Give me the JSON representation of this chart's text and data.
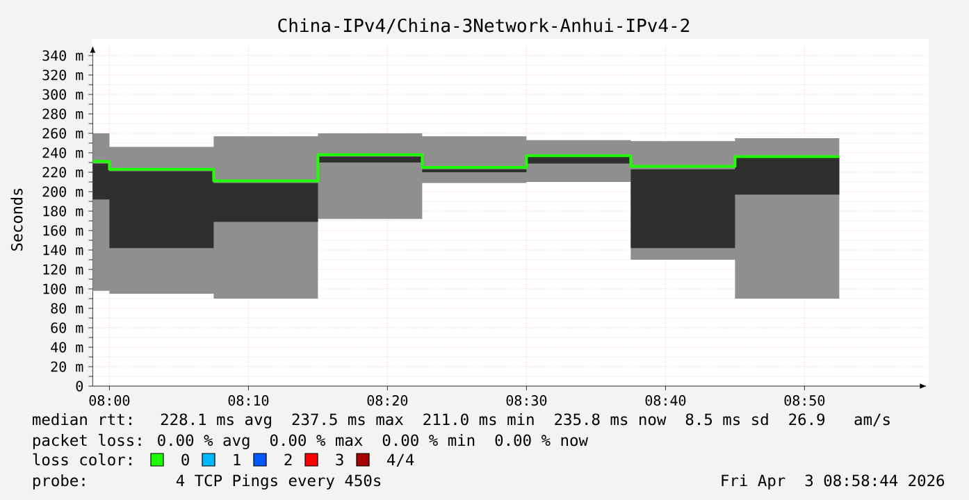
{
  "chart_data": {
    "type": "step",
    "title": "China-IPv4/China-3Network-Anhui-IPv4-2",
    "ylabel": "Seconds",
    "x": [
      7.98,
      8.0,
      8.125,
      8.25,
      8.375,
      8.5,
      8.625,
      8.75,
      8.875
    ],
    "series": [
      {
        "color": "#8f8f8f",
        "values": [
          null,
          null,
          null,
          null,
          null,
          null,
          null,
          null,
          null
        ],
        "lower": [
          98,
          95,
          90,
          172,
          209,
          210,
          130,
          90,
          90
        ],
        "upper": [
          260,
          246,
          257,
          260,
          257,
          253,
          252,
          255,
          255
        ]
      },
      {
        "color": "#2f2f2f",
        "values": [
          null,
          null,
          null,
          null,
          null,
          null,
          null,
          null,
          null
        ],
        "lower": [
          192,
          142,
          169,
          230,
          220,
          229,
          142,
          197,
          197
        ],
        "upper": [
          229,
          221,
          209,
          236,
          223,
          236,
          223,
          235,
          235
        ]
      },
      {
        "color": "#20ff00",
        "values": [
          231,
          223,
          211,
          238,
          225,
          237,
          226,
          236,
          236
        ]
      }
    ],
    "xlim": [
      7.98,
      8.98
    ],
    "xticks": [
      {
        "value": 8.0,
        "label": "08:00"
      },
      {
        "value": 8.1667,
        "label": "08:10"
      },
      {
        "value": 8.3333,
        "label": "08:20"
      },
      {
        "value": 8.5,
        "label": "08:30"
      },
      {
        "value": 8.6667,
        "label": "08:40"
      },
      {
        "value": 8.8333,
        "label": "08:50"
      }
    ],
    "ylim": [
      0,
      350
    ],
    "yticks": [
      0,
      {
        "value": 20,
        "label": "20 m"
      },
      {
        "value": 40,
        "label": "40 m"
      },
      {
        "value": 60,
        "label": "60 m"
      },
      {
        "value": 80,
        "label": "80 m"
      },
      {
        "value": 100,
        "label": "100 m"
      },
      {
        "value": 120,
        "label": "120 m"
      },
      {
        "value": 140,
        "label": "140 m"
      },
      {
        "value": 160,
        "label": "160 m"
      },
      {
        "value": 180,
        "label": "180 m"
      },
      {
        "value": 200,
        "label": "200 m"
      },
      {
        "value": 220,
        "label": "220 m"
      },
      {
        "value": 240,
        "label": "240 m"
      },
      {
        "value": 260,
        "label": "260 m"
      },
      {
        "value": 280,
        "label": "280 m"
      },
      {
        "value": 300,
        "label": "300 m"
      },
      {
        "value": 320,
        "label": "320 m"
      },
      {
        "value": 340,
        "label": "340 m"
      }
    ],
    "grid": true,
    "annotations": [
      "median rtt:  228.1 ms avg  237.5 ms max  211.0 ms min  235.8 ms now  8.5 ms sd  26.9   am/s",
      "packet loss: 0.00 % avg  0.00 % max  0.00 % min  0.00 % now",
      "loss color:",
      "0",
      "1",
      "2",
      "3",
      "4/4",
      "probe:       4 TCP Pings every 450s",
      "Fri Apr  3 08:58:44 2026"
    ]
  }
}
